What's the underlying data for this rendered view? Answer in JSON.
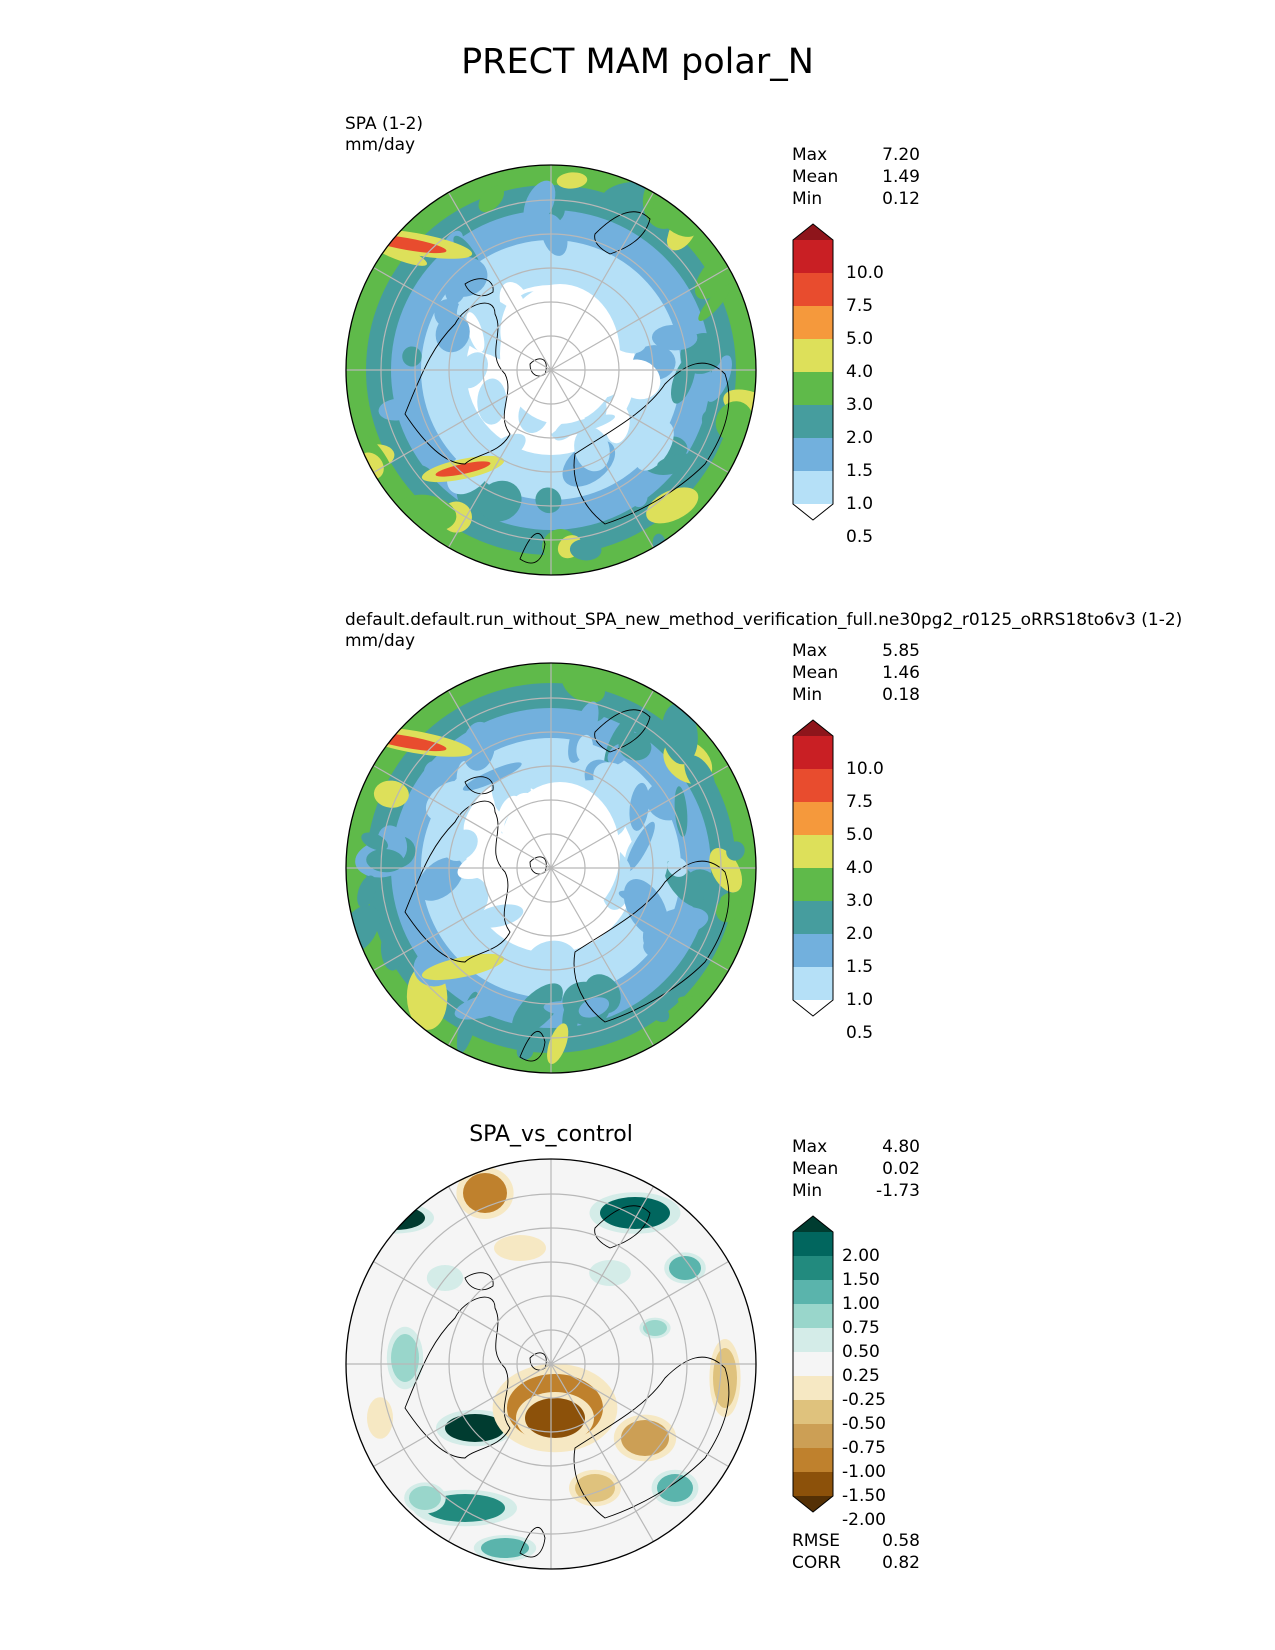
{
  "title": "PRECT MAM polar_N",
  "panels": [
    {
      "label": "SPA (1-2)",
      "units": "mm/day",
      "stats": [
        {
          "label": "Max",
          "value": "7.20"
        },
        {
          "label": "Mean",
          "value": "1.49"
        },
        {
          "label": "Min",
          "value": "0.12"
        }
      ],
      "colorbar": {
        "ticks": [
          "10.0",
          "7.5",
          "5.0",
          "4.0",
          "3.0",
          "2.0",
          "1.5",
          "1.0",
          "0.5"
        ],
        "colors": [
          "#ffffff",
          "#b5e0f7",
          "#72b0dd",
          "#469d9e",
          "#5fba4a",
          "#dde05a",
          "#f5993c",
          "#e84c2e",
          "#c91f24",
          "#8e151b"
        ]
      }
    },
    {
      "label": "default.default.run_without_SPA_new_method_verification_full.ne30pg2_r0125_oRRS18to6v3 (1-2)",
      "units": "mm/day",
      "stats": [
        {
          "label": "Max",
          "value": "5.85"
        },
        {
          "label": "Mean",
          "value": "1.46"
        },
        {
          "label": "Min",
          "value": "0.18"
        }
      ],
      "colorbar": {
        "ticks": [
          "10.0",
          "7.5",
          "5.0",
          "4.0",
          "3.0",
          "2.0",
          "1.5",
          "1.0",
          "0.5"
        ],
        "colors": [
          "#ffffff",
          "#b5e0f7",
          "#72b0dd",
          "#469d9e",
          "#5fba4a",
          "#dde05a",
          "#f5993c",
          "#e84c2e",
          "#c91f24",
          "#8e151b"
        ]
      }
    },
    {
      "title": "SPA_vs_control",
      "stats": [
        {
          "label": "Max",
          "value": "4.80"
        },
        {
          "label": "Mean",
          "value": "0.02"
        },
        {
          "label": "Min",
          "value": "-1.73"
        }
      ],
      "colorbar": {
        "ticks": [
          "2.00",
          "1.50",
          "1.00",
          "0.75",
          "0.50",
          "0.25",
          "-0.25",
          "-0.50",
          "-0.75",
          "-1.00",
          "-1.50",
          "-2.00"
        ],
        "colors": [
          "#543005",
          "#8c510a",
          "#bf812d",
          "#cc9f55",
          "#dfc27d",
          "#f6e8c3",
          "#f5f5f5",
          "#d4ece8",
          "#99d6cb",
          "#5ab4ac",
          "#228a7e",
          "#01665e",
          "#003c30"
        ]
      },
      "metrics": [
        {
          "label": "RMSE",
          "value": "0.58"
        },
        {
          "label": "CORR",
          "value": "0.82"
        }
      ]
    }
  ]
}
